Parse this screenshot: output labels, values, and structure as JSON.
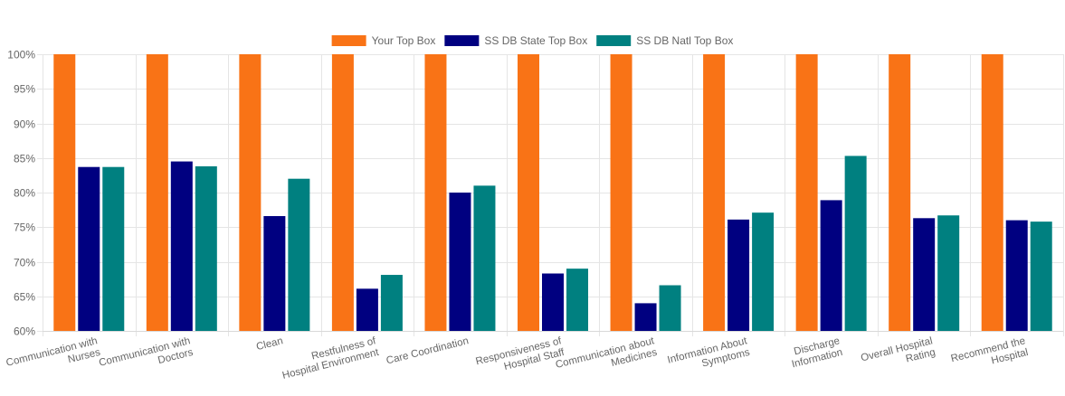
{
  "chart_data": {
    "type": "bar",
    "categories": [
      [
        "Communication with",
        "Nurses"
      ],
      [
        "Communication with",
        "Doctors"
      ],
      [
        "Clean"
      ],
      [
        "Restfulness of",
        "Hospital Environment"
      ],
      [
        "Care Coordination"
      ],
      [
        "Responsiveness of",
        "Hospital Staff"
      ],
      [
        "Communication about",
        "Medicines"
      ],
      [
        "Information About",
        "Symptoms"
      ],
      [
        "Discharge",
        "Information"
      ],
      [
        "Overall Hospital",
        "Rating"
      ],
      [
        "Recommend the",
        "Hospital"
      ]
    ],
    "series": [
      {
        "name": "Your Top Box",
        "color": "#f97316",
        "values": [
          100,
          100,
          100,
          100,
          100,
          100,
          100,
          100,
          100,
          100,
          100
        ]
      },
      {
        "name": "SS DB State Top Box",
        "color": "#000080",
        "values": [
          83.7,
          84.5,
          76.6,
          66.1,
          80.0,
          68.3,
          64.0,
          76.1,
          78.9,
          76.3,
          76.0
        ]
      },
      {
        "name": "SS DB Natl Top Box",
        "color": "#008080",
        "values": [
          83.7,
          83.8,
          82.0,
          68.1,
          81.0,
          69.0,
          66.6,
          77.1,
          85.3,
          76.7,
          75.8
        ]
      }
    ],
    "ylim": [
      60,
      100
    ],
    "yticks": [
      "100%",
      "95%",
      "90%",
      "85%",
      "80%",
      "75%",
      "70%",
      "65%",
      "60%"
    ],
    "grid": true,
    "legend_position": "top"
  }
}
